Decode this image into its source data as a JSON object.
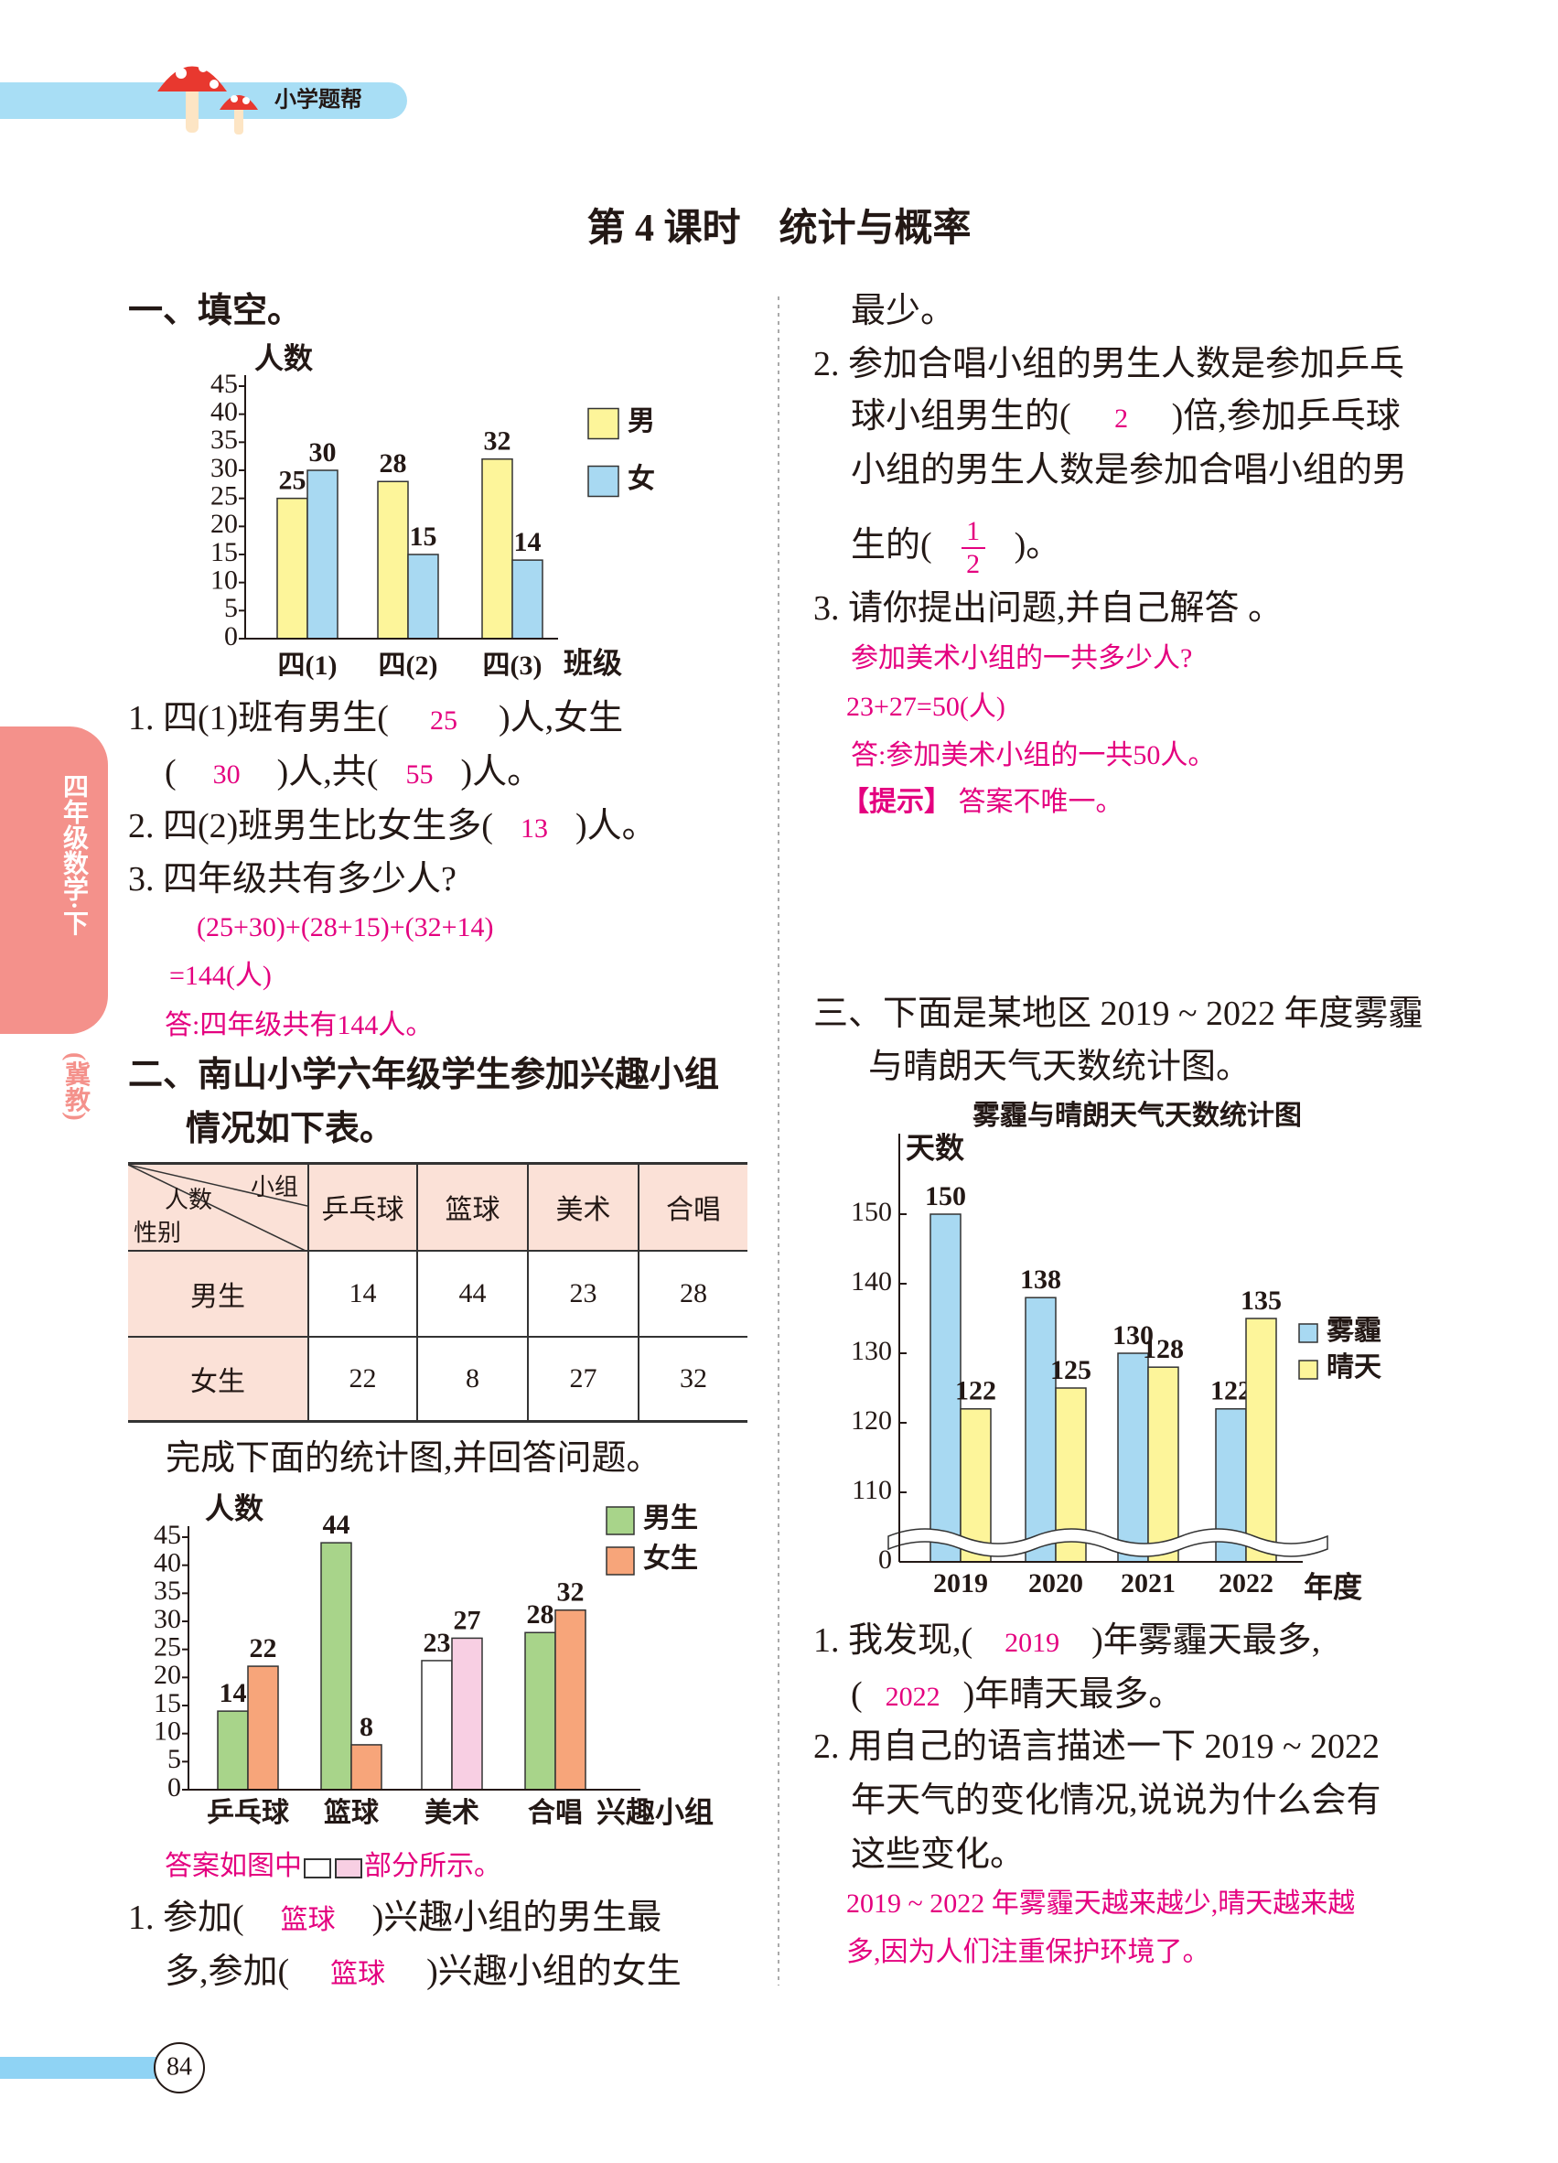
{
  "header": {
    "brand": "小学题帮"
  },
  "side_tab": {
    "grade": "四年级数学·下",
    "edition": "(冀教)"
  },
  "title": "第 4 课时　统计与概率",
  "page_number": "84",
  "part1": {
    "heading": "一、填空。",
    "chart": {
      "type": "bar",
      "y_label": "人数",
      "x_label": "班级",
      "categories": [
        "四(1)",
        "四(2)",
        "四(3)"
      ],
      "series": [
        {
          "name": "男",
          "color": "#fdf59a",
          "values": [
            25,
            28,
            32
          ]
        },
        {
          "name": "女",
          "color": "#a8d9f2",
          "values": [
            30,
            15,
            14
          ]
        }
      ],
      "ylim": [
        0,
        45
      ],
      "yticks": [
        0,
        5,
        10,
        15,
        20,
        25,
        30,
        35,
        40,
        45
      ],
      "legend": "right"
    },
    "q1": {
      "parts": [
        "1. 四(1)班有男生(",
        ")人,女生",
        "(",
        ")人,共(",
        ")人。"
      ],
      "answers": [
        "25",
        "30",
        "55"
      ]
    },
    "q2": {
      "parts": [
        "2. 四(2)班男生比女生多(",
        ")人。"
      ],
      "answers": [
        "13"
      ]
    },
    "q3": {
      "question": "3. 四年级共有多少人?",
      "answer_lines": [
        "(25+30)+(28+15)+(32+14)",
        "=144(人)",
        "答:四年级共有144人。"
      ]
    }
  },
  "part2": {
    "heading": [
      "二、南山小学六年级学生参加兴趣小组",
      "情况如下表。"
    ],
    "table": {
      "corner": [
        "小组",
        "人数",
        "性别"
      ],
      "columns": [
        "乒乓球",
        "篮球",
        "美术",
        "合唱"
      ],
      "rows": [
        [
          "男生",
          "14",
          "44",
          "23",
          "28"
        ],
        [
          "女生",
          "22",
          "8",
          "27",
          "32"
        ]
      ]
    },
    "instruction": "完成下面的统计图,并回答问题。",
    "chart": {
      "type": "bar",
      "y_label": "人数",
      "x_label": "兴趣小组",
      "categories": [
        "乒乓球",
        "篮球",
        "美术",
        "合唱"
      ],
      "series": [
        {
          "name": "男生",
          "color": "#a8d48a",
          "colors": [
            "#a8d48a",
            "#a8d48a",
            "#ffffff",
            "#a8d48a"
          ],
          "values": [
            14,
            44,
            23,
            28
          ]
        },
        {
          "name": "女生",
          "color": "#f7a57a",
          "colors": [
            "#f7a57a",
            "#f7a57a",
            "#f8cfe3",
            "#f7a57a"
          ],
          "values": [
            22,
            8,
            27,
            32
          ]
        }
      ],
      "ylim": [
        0,
        45
      ],
      "yticks": [
        0,
        5,
        10,
        15,
        20,
        25,
        30,
        35,
        40,
        45
      ],
      "legend": "top-right"
    },
    "note": [
      "答案如图中",
      "部分所示。"
    ],
    "q1": {
      "parts": [
        "1. 参加(",
        ")兴趣小组的男生最",
        "多,参加(",
        ")兴趣小组的女生",
        "最少。"
      ],
      "answers": [
        "篮球",
        "篮球"
      ]
    },
    "q2": {
      "parts": [
        "2. 参加合唱小组的男生人数是参加乒乓",
        "球小组男生的(",
        ")倍,参加乒乓球",
        "小组的男生人数是参加合唱小组的男",
        "生的(",
        ")。"
      ],
      "answers": [
        "2"
      ],
      "fraction": {
        "numerator": "1",
        "denominator": "2"
      }
    },
    "q3": {
      "question": "3. 请你提出问题,并自己解答 。",
      "answer_lines": [
        "参加美术小组的一共多少人?",
        "23+27=50(人)",
        "答:参加美术小组的一共50人。"
      ],
      "hint_label": "【提示】",
      "hint": "答案不唯一。"
    }
  },
  "part3": {
    "heading": [
      "三、下面是某地区 2019 ~ 2022 年度雾霾",
      "与晴朗天气天数统计图。"
    ],
    "chart": {
      "type": "bar",
      "title": "雾霾与晴朗天气天数统计图",
      "y_label": "天数",
      "x_label": "年度",
      "categories": [
        "2019",
        "2020",
        "2021",
        "2022"
      ],
      "series": [
        {
          "name": "雾霾",
          "color": "#a8d9f2",
          "values": [
            150,
            138,
            130,
            122
          ]
        },
        {
          "name": "晴天",
          "color": "#fdf59a",
          "values": [
            122,
            125,
            128,
            135
          ]
        }
      ],
      "ylim": [
        0,
        160
      ],
      "yticks": [
        0,
        110,
        120,
        130,
        140,
        150
      ],
      "axis_break": [
        0,
        100
      ],
      "legend": "right"
    },
    "q1": {
      "parts": [
        "1. 我发现,(",
        ")年雾霾天最多,",
        "(",
        ")年晴天最多。"
      ],
      "answers": [
        "2019",
        "2022"
      ]
    },
    "q2": {
      "lines": [
        "2. 用自己的语言描述一下 2019 ~ 2022",
        "年天气的变化情况,说说为什么会有",
        "这些变化。"
      ],
      "answer_lines": [
        "2019 ~ 2022 年雾霾天越来越少,晴天越来越",
        "多,因为人们注重保护环境了。"
      ]
    }
  }
}
